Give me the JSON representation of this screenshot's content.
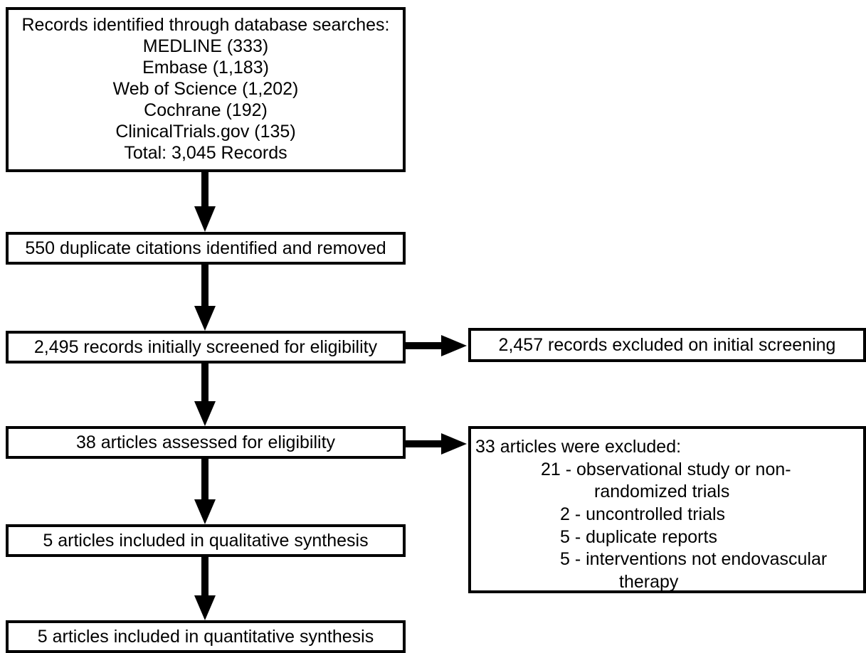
{
  "diagram": {
    "search": {
      "heading": "Records identified through database searches:",
      "sources": [
        "MEDLINE (333)",
        "Embase (1,183)",
        "Web of Science (1,202)",
        "Cochrane (192)",
        "ClinicalTrials.gov (135)"
      ],
      "total": "Total: 3,045 Records"
    },
    "duplicates": "550 duplicate citations identified and removed",
    "screened": "2,495 records initially screened for eligibility",
    "excluded_initial": "2,457 records excluded on initial screening",
    "assessed": "38 articles assessed for eligibility",
    "excluded_full": {
      "heading": "33 articles were excluded:",
      "lines": [
        "21 - observational study or non-",
        "randomized trials",
        "2 - uncontrolled trials",
        "5 - duplicate reports",
        "5 - interventions not endovascular",
        "therapy"
      ]
    },
    "qualitative": "5 articles included in qualitative synthesis",
    "quantitative": "5 articles included in quantitative synthesis"
  }
}
